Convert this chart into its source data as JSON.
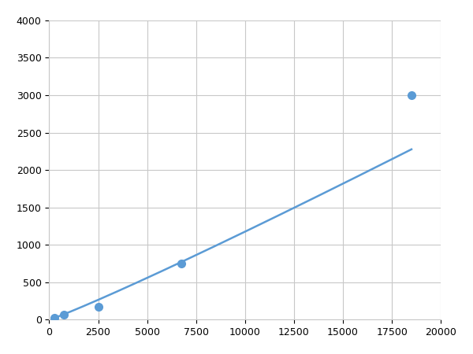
{
  "x": [
    250,
    750,
    2500,
    6750,
    18500
  ],
  "y": [
    30,
    65,
    175,
    750,
    3000
  ],
  "line_color": "#5b9bd5",
  "marker_color": "#5b9bd5",
  "marker_size": 7,
  "line_width": 1.8,
  "xlim": [
    0,
    20000
  ],
  "ylim": [
    0,
    4000
  ],
  "xticks": [
    0,
    2500,
    5000,
    7500,
    10000,
    12500,
    15000,
    17500,
    20000
  ],
  "yticks": [
    0,
    500,
    1000,
    1500,
    2000,
    2500,
    3000,
    3500,
    4000
  ],
  "grid_color": "#c8c8c8",
  "background_color": "#ffffff",
  "figsize": [
    6.0,
    4.5
  ],
  "dpi": 100
}
